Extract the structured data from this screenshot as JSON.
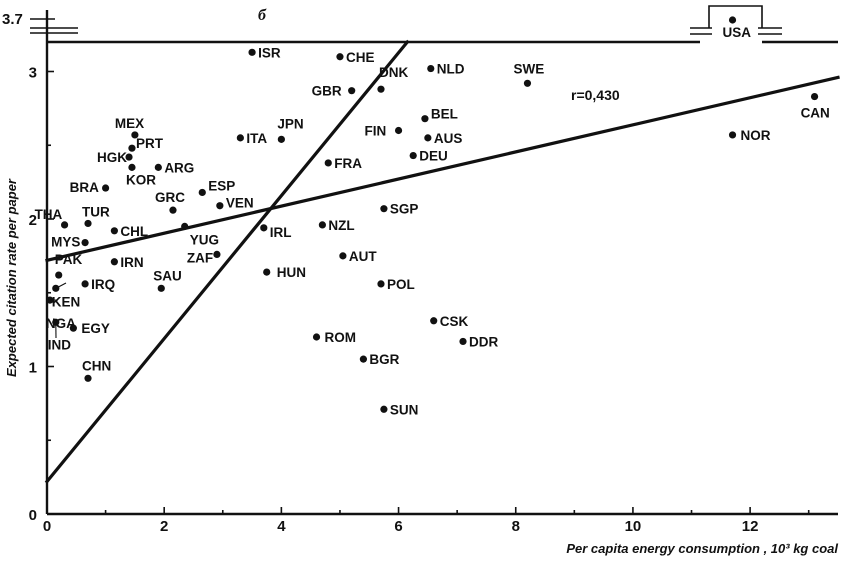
{
  "chart_data": {
    "type": "scatter",
    "panel_mark": "б",
    "xlabel": "Per capita energy consumption , 10³ kg coal",
    "ylabel": "Expected citation rate per paper",
    "xlim": [
      0,
      13.5
    ],
    "ylim": [
      0,
      3.2
    ],
    "x_ticks": [
      0,
      2,
      4,
      6,
      8,
      10,
      12
    ],
    "y_ticks": [
      0,
      1,
      2,
      3
    ],
    "y_break_label": "3.7",
    "correlation_label": "r=0,430",
    "lines": [
      {
        "x": [
          0,
          13.5
        ],
        "y": [
          1.72,
          2.96
        ]
      },
      {
        "x": [
          0,
          6.15
        ],
        "y": [
          0.22,
          3.2
        ]
      }
    ],
    "points": [
      {
        "name": "USA",
        "x": 11.7,
        "y": 3.7
      },
      {
        "name": "ISR",
        "x": 3.5,
        "y": 3.13
      },
      {
        "name": "CHE",
        "x": 5.0,
        "y": 3.1
      },
      {
        "name": "NLD",
        "x": 6.55,
        "y": 3.02
      },
      {
        "name": "SWE",
        "x": 8.2,
        "y": 2.92
      },
      {
        "name": "GBR",
        "x": 5.2,
        "y": 2.87
      },
      {
        "name": "DNK",
        "x": 5.7,
        "y": 2.88
      },
      {
        "name": "CAN",
        "x": 13.1,
        "y": 2.83
      },
      {
        "name": "BEL",
        "x": 6.45,
        "y": 2.68
      },
      {
        "name": "FIN",
        "x": 6.0,
        "y": 2.6
      },
      {
        "name": "AUS",
        "x": 6.5,
        "y": 2.55
      },
      {
        "name": "NOR",
        "x": 11.7,
        "y": 2.57
      },
      {
        "name": "MEX",
        "x": 1.5,
        "y": 2.57
      },
      {
        "name": "PRT",
        "x": 1.45,
        "y": 2.48
      },
      {
        "name": "HGK",
        "x": 1.4,
        "y": 2.42
      },
      {
        "name": "ITA",
        "x": 3.3,
        "y": 2.55
      },
      {
        "name": "JPN",
        "x": 4.0,
        "y": 2.54
      },
      {
        "name": "DEU",
        "x": 6.25,
        "y": 2.43
      },
      {
        "name": "KOR",
        "x": 1.45,
        "y": 2.35
      },
      {
        "name": "ARG",
        "x": 1.9,
        "y": 2.35
      },
      {
        "name": "FRA",
        "x": 4.8,
        "y": 2.38
      },
      {
        "name": "BRA",
        "x": 1.0,
        "y": 2.21
      },
      {
        "name": "ESP",
        "x": 2.65,
        "y": 2.18
      },
      {
        "name": "GRC",
        "x": 2.15,
        "y": 2.06
      },
      {
        "name": "VEN",
        "x": 2.95,
        "y": 2.09
      },
      {
        "name": "SGP",
        "x": 5.75,
        "y": 2.07
      },
      {
        "name": "THA",
        "x": 0.3,
        "y": 1.96
      },
      {
        "name": "TUR",
        "x": 0.7,
        "y": 1.97
      },
      {
        "name": "NZL",
        "x": 4.7,
        "y": 1.96
      },
      {
        "name": "CHL",
        "x": 1.15,
        "y": 1.92
      },
      {
        "name": "IRL",
        "x": 3.7,
        "y": 1.94
      },
      {
        "name": "YUG",
        "x": 2.35,
        "y": 1.95
      },
      {
        "name": "MYS",
        "x": 0.65,
        "y": 1.84
      },
      {
        "name": "ZAF",
        "x": 2.9,
        "y": 1.76
      },
      {
        "name": "AUT",
        "x": 5.05,
        "y": 1.75
      },
      {
        "name": "IRN",
        "x": 1.15,
        "y": 1.71
      },
      {
        "name": "PAK",
        "x": 0.2,
        "y": 1.62
      },
      {
        "name": "HUN",
        "x": 3.75,
        "y": 1.64
      },
      {
        "name": "IRQ",
        "x": 0.65,
        "y": 1.56
      },
      {
        "name": "POL",
        "x": 5.7,
        "y": 1.56
      },
      {
        "name": "SAU",
        "x": 1.95,
        "y": 1.53
      },
      {
        "name": "KEN",
        "x": 0.15,
        "y": 1.53
      },
      {
        "name": "NGA",
        "x": 0.05,
        "y": 1.45
      },
      {
        "name": "CSK",
        "x": 6.6,
        "y": 1.31
      },
      {
        "name": "EGY",
        "x": 0.45,
        "y": 1.26
      },
      {
        "name": "IND",
        "x": 0.15,
        "y": 1.3
      },
      {
        "name": "ROM",
        "x": 4.6,
        "y": 1.2
      },
      {
        "name": "DDR",
        "x": 7.1,
        "y": 1.17
      },
      {
        "name": "BGR",
        "x": 5.4,
        "y": 1.05
      },
      {
        "name": "CHN",
        "x": 0.7,
        "y": 0.92
      },
      {
        "name": "SUN",
        "x": 5.75,
        "y": 0.71
      }
    ]
  }
}
